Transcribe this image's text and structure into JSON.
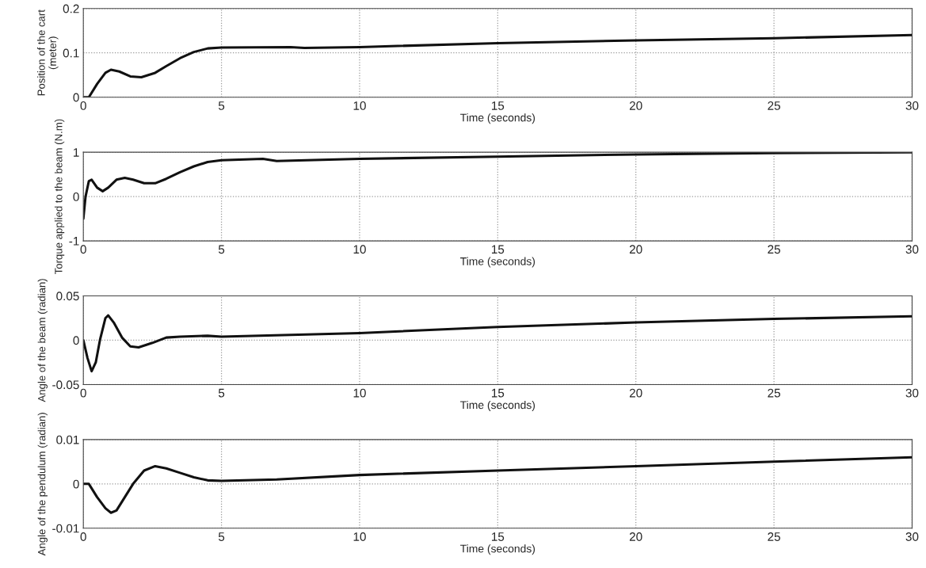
{
  "chart_data": [
    {
      "type": "line",
      "xlabel": "Time (seconds)",
      "ylabel": "Position of the cart (meter)",
      "xlim": [
        0,
        30
      ],
      "xticks": [
        0,
        5,
        10,
        15,
        20,
        25,
        30
      ],
      "ylim": [
        0,
        0.2
      ],
      "yticks": [
        0,
        0.1,
        0.2
      ],
      "grid": true,
      "x": [
        0,
        0.2,
        0.5,
        0.8,
        1.0,
        1.3,
        1.7,
        2.1,
        2.6,
        3,
        3.5,
        4,
        4.5,
        5,
        7.5,
        8,
        10,
        15,
        20,
        25,
        30
      ],
      "series": [
        {
          "color": "#111111",
          "values": [
            0,
            0,
            0.03,
            0.055,
            0.062,
            0.058,
            0.047,
            0.045,
            0.055,
            0.07,
            0.088,
            0.102,
            0.11,
            0.112,
            0.113,
            0.111,
            0.113,
            0.122,
            0.128,
            0.133,
            0.14
          ]
        }
      ]
    },
    {
      "type": "line",
      "xlabel": "Time (seconds)",
      "ylabel": "Torque applied to the beam (N.m)",
      "xlim": [
        0,
        30
      ],
      "xticks": [
        0,
        5,
        10,
        15,
        20,
        25,
        30
      ],
      "ylim": [
        -1,
        1
      ],
      "yticks": [
        -1,
        0,
        1
      ],
      "grid": true,
      "x": [
        0,
        0.08,
        0.2,
        0.3,
        0.5,
        0.7,
        0.9,
        1.2,
        1.5,
        1.8,
        2.2,
        2.6,
        3,
        3.5,
        4,
        4.5,
        5,
        6.5,
        7,
        10,
        15,
        20,
        25,
        30
      ],
      "series": [
        {
          "color": "#111111",
          "values": [
            -0.5,
            0,
            0.35,
            0.38,
            0.2,
            0.12,
            0.2,
            0.38,
            0.42,
            0.38,
            0.3,
            0.3,
            0.4,
            0.55,
            0.68,
            0.78,
            0.82,
            0.85,
            0.8,
            0.85,
            0.9,
            0.95,
            0.98,
            1.0
          ]
        }
      ]
    },
    {
      "type": "line",
      "xlabel": "Time (seconds)",
      "ylabel": "Angle of the beam (radian)",
      "xlim": [
        0,
        30
      ],
      "xticks": [
        0,
        5,
        10,
        15,
        20,
        25,
        30
      ],
      "ylim": [
        -0.05,
        0.05
      ],
      "yticks": [
        -0.05,
        0,
        0.05
      ],
      "grid": true,
      "x": [
        0,
        0.15,
        0.3,
        0.45,
        0.6,
        0.8,
        0.9,
        1.1,
        1.4,
        1.7,
        2,
        2.5,
        3,
        3.5,
        4.5,
        5,
        10,
        15,
        20,
        25,
        30
      ],
      "series": [
        {
          "color": "#111111",
          "values": [
            0,
            -0.02,
            -0.035,
            -0.025,
            0,
            0.025,
            0.028,
            0.02,
            0.003,
            -0.007,
            -0.008,
            -0.003,
            0.003,
            0.004,
            0.005,
            0.004,
            0.008,
            0.015,
            0.02,
            0.024,
            0.027
          ]
        }
      ]
    },
    {
      "type": "line",
      "xlabel": "Time (seconds)",
      "ylabel": "Angle of the pendulum (radian)",
      "xlim": [
        0,
        30
      ],
      "xticks": [
        0,
        5,
        10,
        15,
        20,
        25,
        30
      ],
      "ylim": [
        -0.01,
        0.01
      ],
      "yticks": [
        -0.01,
        0,
        0.01
      ],
      "grid": true,
      "x": [
        0,
        0.2,
        0.5,
        0.8,
        1,
        1.2,
        1.5,
        1.8,
        2.2,
        2.6,
        3,
        3.5,
        4,
        4.5,
        5,
        7,
        10,
        15,
        20,
        25,
        30
      ],
      "series": [
        {
          "color": "#111111",
          "values": [
            0,
            0,
            -0.003,
            -0.0055,
            -0.0065,
            -0.006,
            -0.003,
            0,
            0.003,
            0.004,
            0.0035,
            0.0025,
            0.0015,
            0.0008,
            0.0007,
            0.001,
            0.002,
            0.003,
            0.004,
            0.005,
            0.006
          ]
        }
      ]
    }
  ]
}
